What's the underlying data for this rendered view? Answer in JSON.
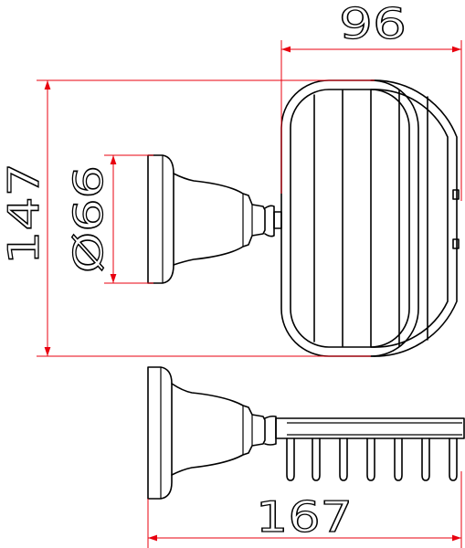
{
  "dimensions": {
    "top_width": "96",
    "height": "147",
    "base_diameter": "Ø66",
    "total_depth": "167"
  },
  "colors": {
    "dimension_line": "#e8000f",
    "object_line": "#000000",
    "background": "#ffffff"
  }
}
